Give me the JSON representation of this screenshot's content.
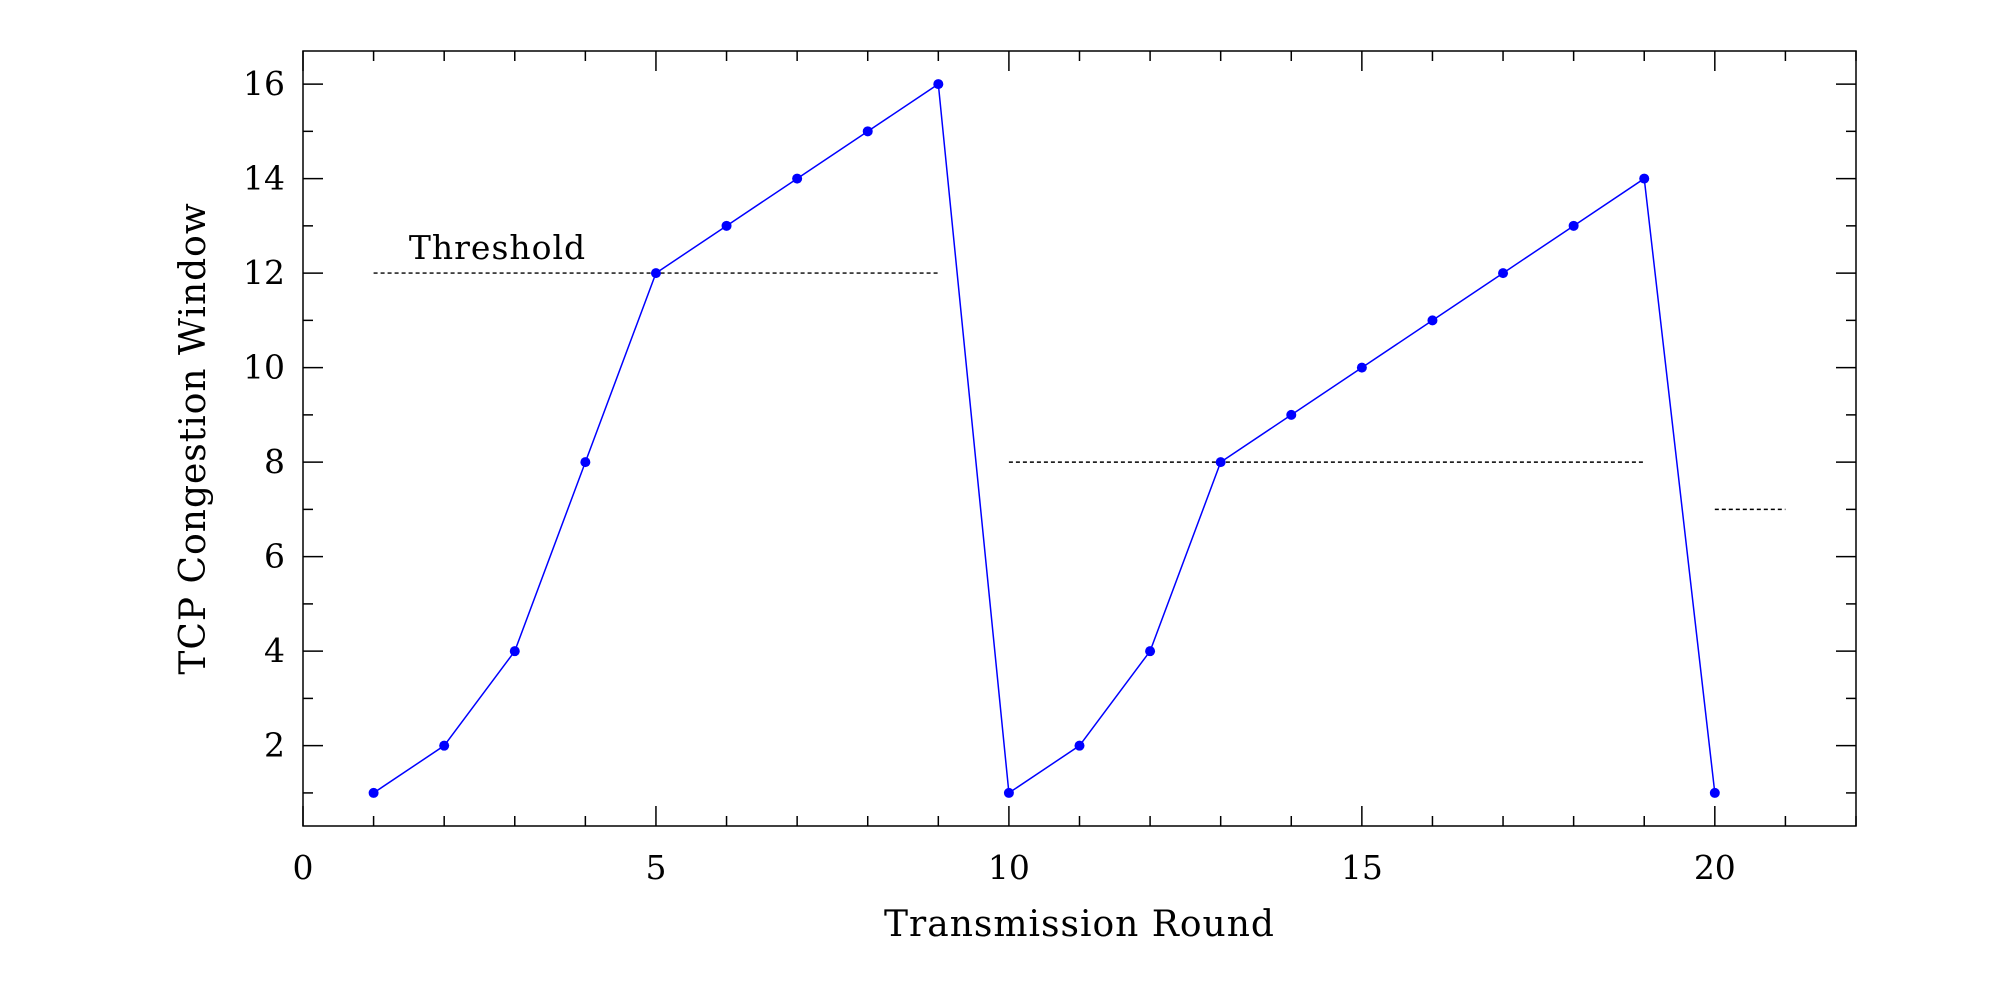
{
  "chart_data": {
    "type": "line",
    "title": "",
    "xlabel": "Transmission Round",
    "ylabel": "TCP Congestion Window",
    "xlim": [
      0,
      22
    ],
    "ylim": [
      0.3,
      16.7
    ],
    "xticks": [
      0,
      5,
      10,
      15,
      20
    ],
    "yticks": [
      2,
      4,
      6,
      8,
      10,
      12,
      14,
      16
    ],
    "grid": false,
    "legend": "none",
    "colors": {
      "series": "#0000ff",
      "threshold": "#000000",
      "axes": "#000000"
    },
    "series": [
      {
        "x": [
          1,
          2,
          3,
          4,
          5,
          6,
          7,
          8,
          9,
          10,
          11,
          12,
          13,
          14,
          15,
          16,
          17,
          18,
          19,
          20
        ],
        "y": [
          1,
          2,
          4,
          8,
          12,
          13,
          14,
          15,
          16,
          1,
          2,
          4,
          8,
          9,
          10,
          11,
          12,
          13,
          14,
          1
        ],
        "markers": true
      }
    ],
    "threshold_lines": [
      {
        "x_start": 1,
        "x_end": 9,
        "y": 12
      },
      {
        "x_start": 10,
        "x_end": 19,
        "y": 8
      },
      {
        "x_start": 20,
        "x_end": 21,
        "y": 7
      }
    ],
    "annotations": [
      {
        "text": "Threshold",
        "x": 1.5,
        "y": 12.3
      }
    ]
  }
}
